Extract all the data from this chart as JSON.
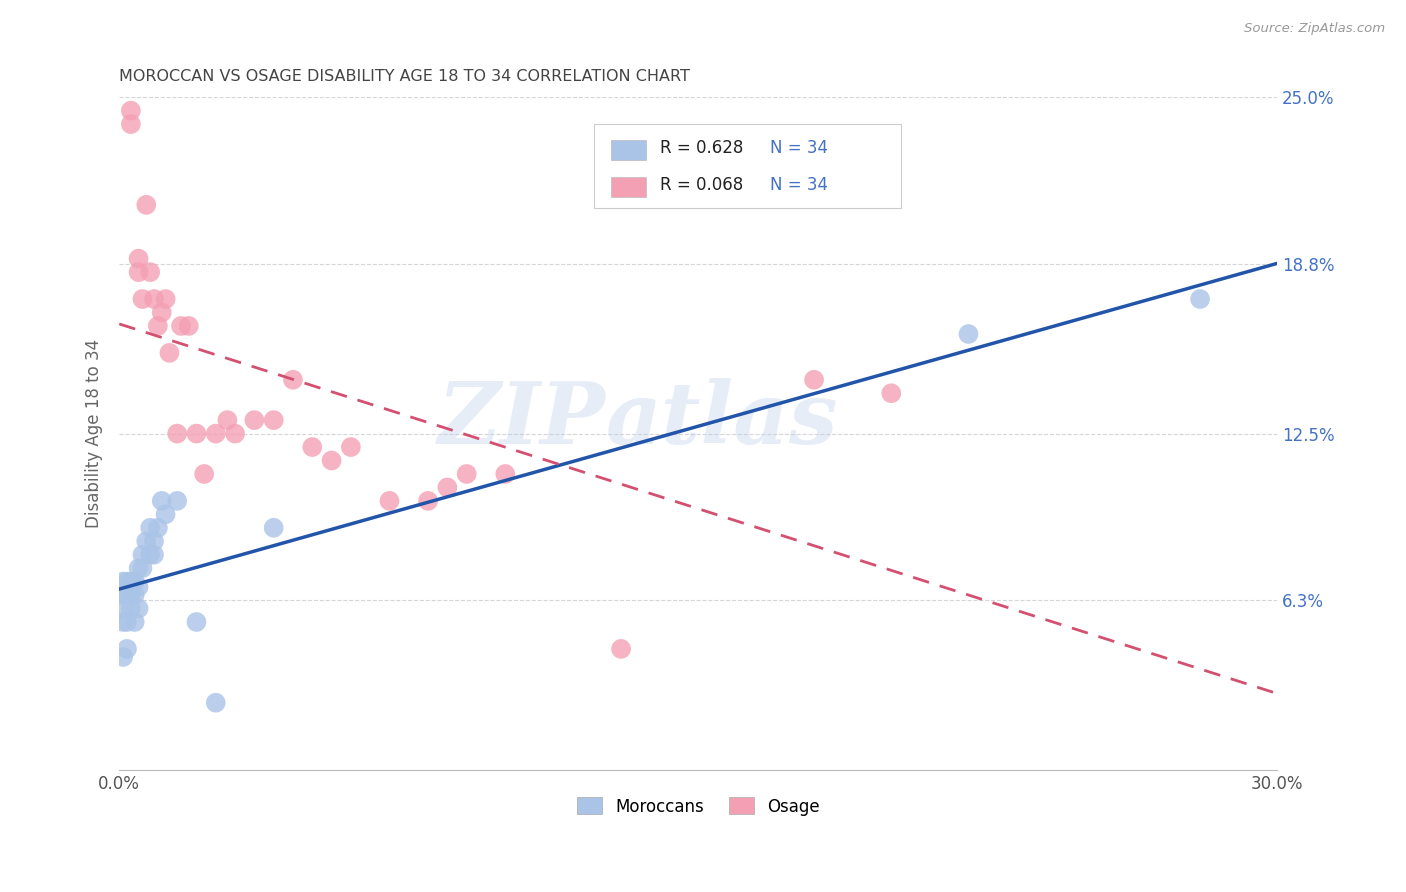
{
  "title": "MOROCCAN VS OSAGE DISABILITY AGE 18 TO 34 CORRELATION CHART",
  "source": "Source: ZipAtlas.com",
  "ylabel": "Disability Age 18 to 34",
  "xmin": 0.0,
  "xmax": 0.3,
  "ymin": 0.0,
  "ymax": 0.25,
  "yticks": [
    0.063,
    0.125,
    0.188,
    0.25
  ],
  "ytick_labels": [
    "6.3%",
    "12.5%",
    "18.8%",
    "25.0%"
  ],
  "xticks": [
    0.0,
    0.05,
    0.1,
    0.15,
    0.2,
    0.25,
    0.3
  ],
  "xtick_labels": [
    "0.0%",
    "",
    "",
    "",
    "",
    "",
    "30.0%"
  ],
  "watermark_zip": "ZIP",
  "watermark_atlas": "atlas",
  "moroccan_R": 0.628,
  "moroccan_N": 34,
  "osage_R": 0.068,
  "osage_N": 34,
  "moroccan_color": "#aac4e8",
  "moroccan_line_color": "#2255aa",
  "osage_color": "#f4a0b4",
  "osage_line_color": "#d45070",
  "moroccan_x": [
    0.001,
    0.001,
    0.001,
    0.001,
    0.001,
    0.002,
    0.002,
    0.002,
    0.002,
    0.003,
    0.003,
    0.003,
    0.004,
    0.004,
    0.004,
    0.005,
    0.005,
    0.005,
    0.006,
    0.006,
    0.007,
    0.008,
    0.008,
    0.009,
    0.009,
    0.01,
    0.011,
    0.012,
    0.015,
    0.02,
    0.025,
    0.04,
    0.22,
    0.28
  ],
  "moroccan_y": [
    0.042,
    0.055,
    0.06,
    0.065,
    0.07,
    0.045,
    0.055,
    0.065,
    0.07,
    0.06,
    0.065,
    0.07,
    0.055,
    0.065,
    0.07,
    0.06,
    0.068,
    0.075,
    0.075,
    0.08,
    0.085,
    0.08,
    0.09,
    0.08,
    0.085,
    0.09,
    0.1,
    0.095,
    0.1,
    0.055,
    0.025,
    0.09,
    0.162,
    0.175
  ],
  "osage_x": [
    0.003,
    0.003,
    0.005,
    0.005,
    0.006,
    0.007,
    0.008,
    0.009,
    0.01,
    0.011,
    0.012,
    0.013,
    0.015,
    0.016,
    0.018,
    0.02,
    0.022,
    0.025,
    0.028,
    0.03,
    0.035,
    0.04,
    0.045,
    0.05,
    0.055,
    0.06,
    0.07,
    0.08,
    0.085,
    0.09,
    0.1,
    0.13,
    0.18,
    0.2
  ],
  "osage_y": [
    0.245,
    0.24,
    0.19,
    0.185,
    0.175,
    0.21,
    0.185,
    0.175,
    0.165,
    0.17,
    0.175,
    0.155,
    0.125,
    0.165,
    0.165,
    0.125,
    0.11,
    0.125,
    0.13,
    0.125,
    0.13,
    0.13,
    0.145,
    0.12,
    0.115,
    0.12,
    0.1,
    0.1,
    0.105,
    0.11,
    0.11,
    0.045,
    0.145,
    0.14
  ],
  "background_color": "#ffffff",
  "grid_color": "#cccccc",
  "title_color": "#444444",
  "axis_label_color": "#666666",
  "right_axis_color": "#4472c4",
  "legend_color": "#4472c4",
  "legend_R_black": "#222222"
}
